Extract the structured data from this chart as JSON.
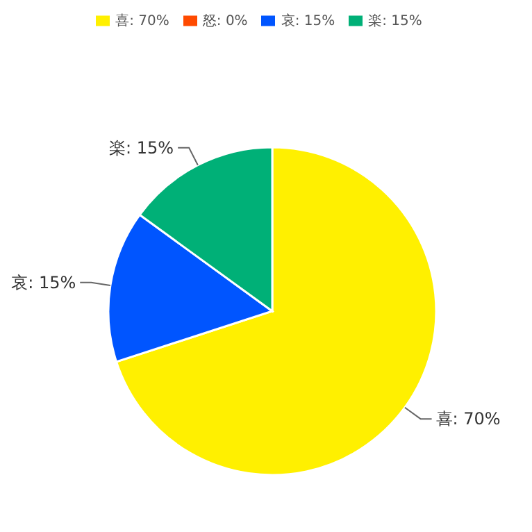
{
  "chart_data": {
    "type": "pie",
    "categories": [
      "喜: 70%",
      "怒: 0%",
      "哀: 15%",
      "楽: 15%"
    ],
    "values": [
      70,
      0,
      15,
      15
    ],
    "colors": [
      "#fff000",
      "#ff4a00",
      "#0055ff",
      "#00b077"
    ],
    "legend": "top"
  }
}
